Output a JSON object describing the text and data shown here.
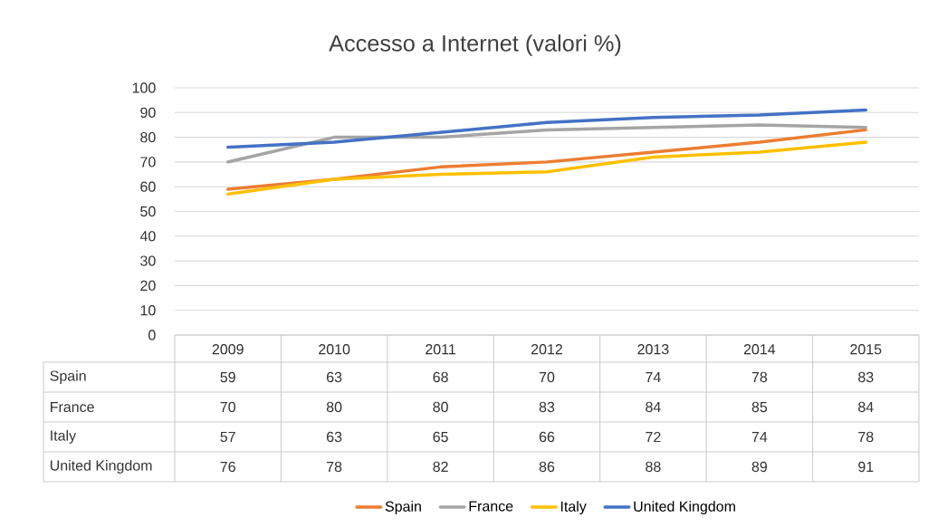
{
  "chart_data": {
    "type": "line",
    "title": "Accesso a Internet (valori %)",
    "categories": [
      "2009",
      "2010",
      "2011",
      "2012",
      "2013",
      "2014",
      "2015"
    ],
    "series": [
      {
        "name": "Spain",
        "color": "#ed7d31",
        "values": [
          59,
          63,
          68,
          70,
          74,
          78,
          83
        ]
      },
      {
        "name": "France",
        "color": "#a5a5a5",
        "values": [
          70,
          80,
          80,
          83,
          84,
          85,
          84
        ]
      },
      {
        "name": "Italy",
        "color": "#ffc000",
        "values": [
          57,
          63,
          65,
          66,
          72,
          74,
          78
        ]
      },
      {
        "name": "United Kingdom",
        "color": "#4472c4",
        "values": [
          76,
          78,
          82,
          86,
          88,
          89,
          91
        ]
      }
    ],
    "ylim": [
      0,
      100
    ],
    "yticks": [
      0,
      10,
      20,
      30,
      40,
      50,
      60,
      70,
      80,
      90,
      100
    ],
    "grid": "y",
    "legend": "bottom",
    "data_labels": true,
    "marker": "none",
    "line_style": "solid"
  }
}
